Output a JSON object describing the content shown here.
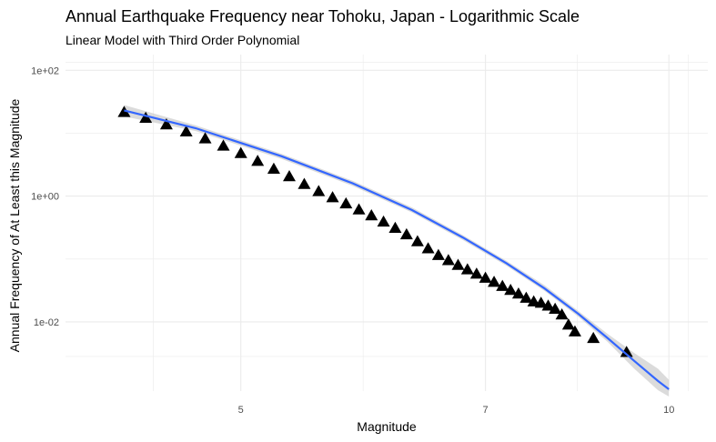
{
  "chart_data": {
    "type": "scatter",
    "title": "Annual Earthquake Frequency near Tohoku, Japan - Logarithmic Scale",
    "subtitle": "Linear Model with Third Order Polynomial",
    "xlabel": "Magnitude",
    "ylabel": "Annual Frequency of At Least this Magnitude",
    "x_scale": "reciprocal",
    "y_scale": "log10",
    "xlim": [
      4.15,
      11.0
    ],
    "ylim_log10": [
      -3.1,
      2.25
    ],
    "x_ticks": [
      5,
      7,
      10
    ],
    "x_tick_labels": [
      "5",
      "7",
      "10"
    ],
    "y_ticks": [
      100,
      1,
      0.01
    ],
    "y_tick_labels": [
      "1e+02",
      "1e+00",
      "1e-02"
    ],
    "grid": true,
    "legend": "none",
    "colors": {
      "points": "#000000",
      "fit_line": "#3366FF",
      "ribbon": "#BDBDBD",
      "grid": "#EBEBEB"
    },
    "points": {
      "marker": "triangle",
      "x": [
        4.4,
        4.5,
        4.6,
        4.7,
        4.8,
        4.9,
        5.0,
        5.1,
        5.2,
        5.3,
        5.4,
        5.5,
        5.6,
        5.7,
        5.8,
        5.9,
        6.0,
        6.1,
        6.2,
        6.3,
        6.4,
        6.5,
        6.6,
        6.7,
        6.8,
        6.9,
        7.0,
        7.1,
        7.2,
        7.3,
        7.4,
        7.5,
        7.6,
        7.7,
        7.8,
        7.9,
        8.0,
        8.1,
        8.2,
        8.5,
        9.1
      ],
      "y": [
        21.6,
        17.4,
        13.7,
        10.6,
        8.2,
        6.3,
        4.8,
        3.6,
        2.7,
        2.05,
        1.55,
        1.19,
        0.95,
        0.76,
        0.61,
        0.49,
        0.39,
        0.31,
        0.245,
        0.19,
        0.147,
        0.115,
        0.095,
        0.08,
        0.068,
        0.058,
        0.05,
        0.043,
        0.037,
        0.032,
        0.028,
        0.024,
        0.021,
        0.02,
        0.018,
        0.016,
        0.013,
        0.009,
        0.007,
        0.0055,
        0.0033
      ]
    },
    "fit": {
      "x": [
        4.4,
        4.75,
        5.25,
        5.75,
        6.25,
        6.75,
        7.25,
        7.75,
        8.25,
        8.75,
        9.25,
        9.75,
        10.0
      ],
      "y": [
        23.0,
        12.0,
        4.3,
        1.6,
        0.6,
        0.22,
        0.085,
        0.034,
        0.0135,
        0.0055,
        0.0024,
        0.00115,
        0.00085
      ],
      "ci_lower": [
        18.5,
        10.8,
        3.9,
        1.45,
        0.55,
        0.2,
        0.078,
        0.031,
        0.0122,
        0.0048,
        0.0018,
        0.00082,
        0.00065
      ],
      "ci_upper": [
        28.0,
        13.3,
        4.7,
        1.75,
        0.66,
        0.24,
        0.093,
        0.038,
        0.015,
        0.0064,
        0.0032,
        0.0018,
        0.0012
      ]
    }
  }
}
